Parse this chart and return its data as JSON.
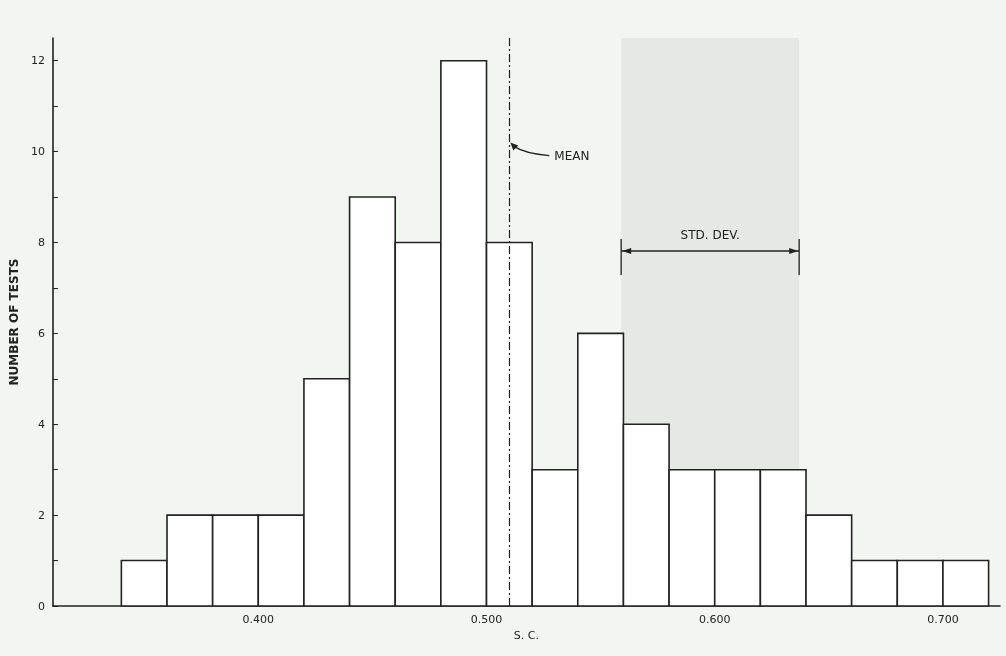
{
  "chart_data": {
    "type": "histogram",
    "xlabel": "S. C.",
    "ylabel": "NUMBER OF TESTS",
    "bins": [
      0.34,
      0.36,
      0.38,
      0.4,
      0.42,
      0.44,
      0.46,
      0.48,
      0.5,
      0.52,
      0.54,
      0.56,
      0.58,
      0.6,
      0.62,
      0.64,
      0.66,
      0.68,
      0.7,
      0.72
    ],
    "values": [
      1,
      2,
      2,
      2,
      5,
      9,
      8,
      12,
      8,
      3,
      6,
      4,
      3,
      3,
      3,
      2,
      1,
      1,
      1
    ],
    "color": "#ffffff",
    "xlim": [
      0.31,
      0.725
    ],
    "xticks": [
      {
        "value": 0.4,
        "label": "0.400"
      },
      {
        "value": 0.5,
        "label": "0.500"
      },
      {
        "value": 0.6,
        "label": "0.600"
      },
      {
        "value": 0.7,
        "label": "0.700"
      }
    ],
    "ylim": [
      0,
      12.5
    ],
    "yticks": [
      0,
      {
        "value": 1,
        "label": null
      },
      2,
      {
        "value": 3,
        "label": null
      },
      4,
      {
        "value": 5,
        "label": null
      },
      6,
      {
        "value": 7,
        "label": null
      },
      8,
      {
        "value": 9,
        "label": null
      },
      10,
      {
        "value": 11,
        "label": null
      },
      12
    ],
    "ref_lines": [
      {
        "axis": "x",
        "value": 0.51,
        "label": "MEAN",
        "line_style": "dashed"
      }
    ],
    "bands": [
      {
        "axis": "x",
        "from": 0.559,
        "to": 0.637,
        "label": "STD. DEV."
      }
    ],
    "grid": false
  }
}
